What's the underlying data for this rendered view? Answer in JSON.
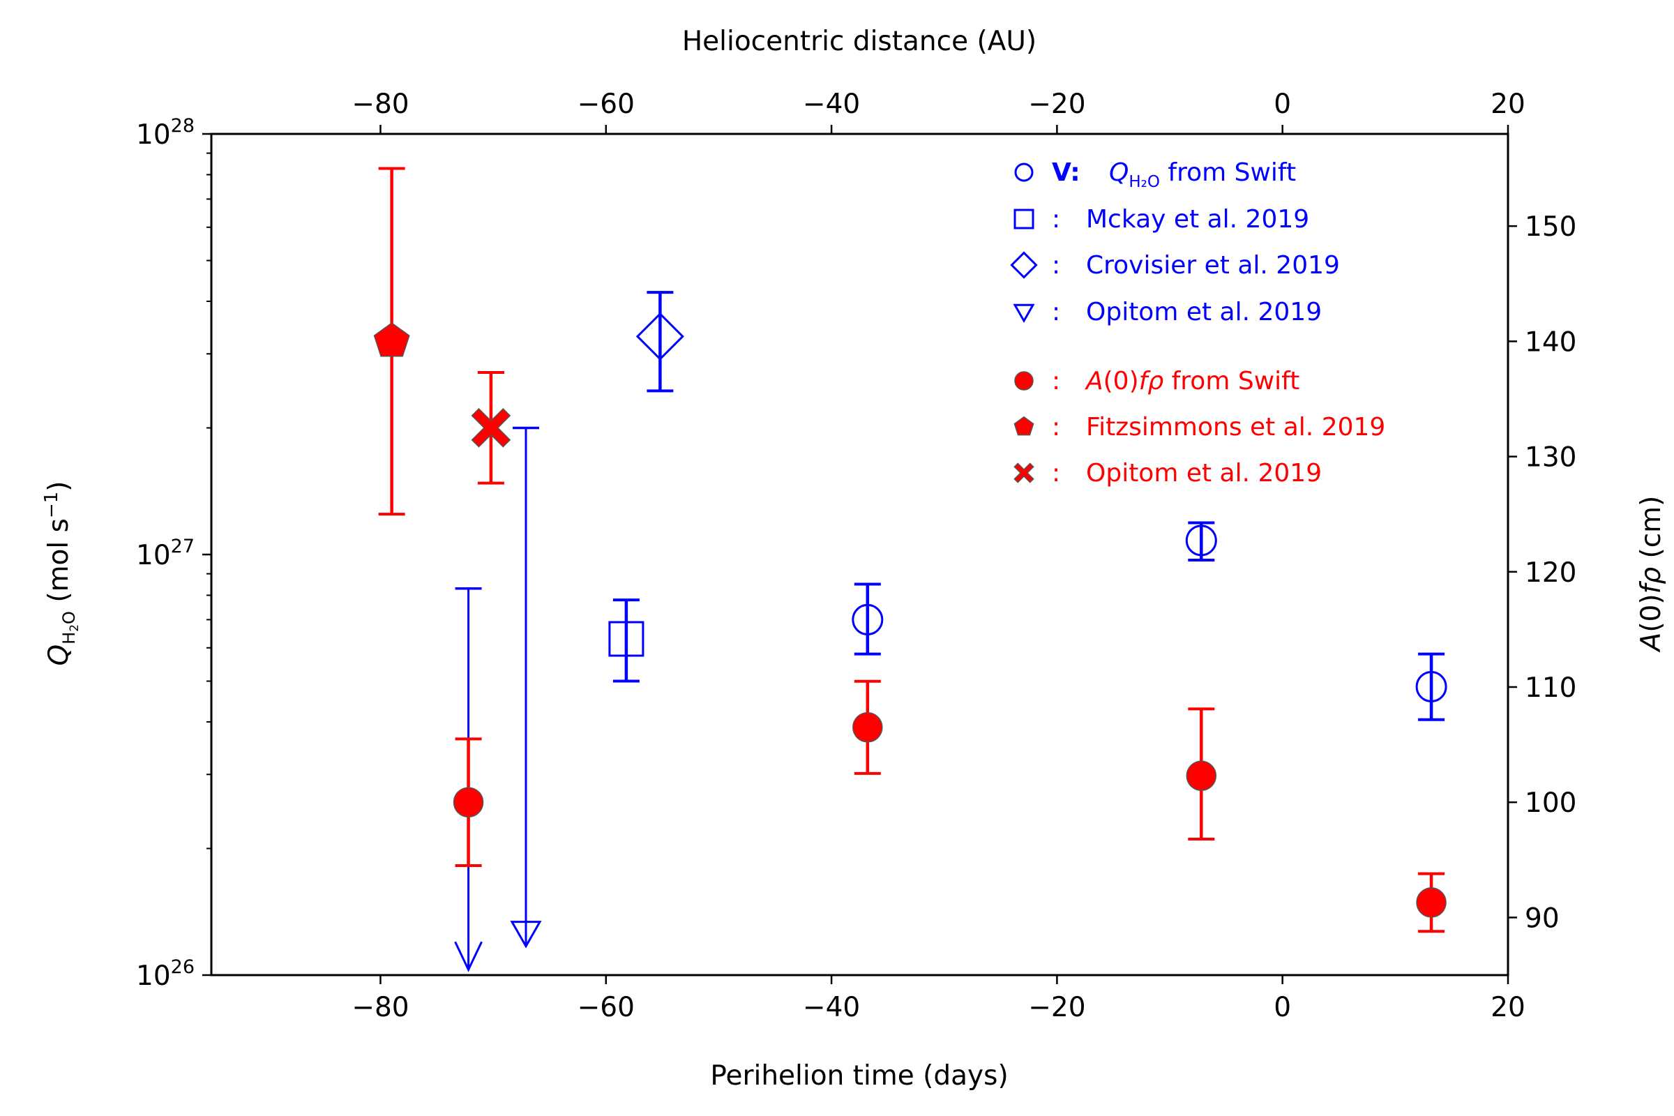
{
  "chart_data": {
    "type": "scatter",
    "title": "",
    "xlabel": "Perihelion time (days)",
    "x2label": "Heliocentric distance (AU)",
    "ylabel_main": "Q",
    "ylabel_sub": "H",
    "ylabel_sub2": "2",
    "ylabel_sub3": "O",
    "ylabel_units_pre": " (mol s",
    "ylabel_units_exp": "−1",
    "ylabel_units_post": ")",
    "y2label_pre": "A",
    "y2label_mid": "(0)",
    "y2label_italic": "fρ",
    "y2label_units": " (cm)",
    "xlim": [
      -95,
      20
    ],
    "ylim": [
      1e+26,
      1e+28
    ],
    "yscale": "log",
    "y2lim": [
      85,
      158
    ],
    "xticks": [
      -80,
      -60,
      -40,
      -20,
      0,
      20
    ],
    "xtick_labels": [
      "−80",
      "−60",
      "−40",
      "−20",
      "0",
      "20"
    ],
    "yticks_base": "10",
    "yticks_exp": [
      "26",
      "27",
      "28"
    ],
    "y2ticks": [
      90,
      100,
      110,
      120,
      130,
      140,
      150
    ],
    "colors": {
      "blue": "#0000ff",
      "red": "#ff0000",
      "axis": "#000000",
      "edge": "#555555"
    },
    "series": [
      {
        "name": "Q from Swift",
        "axis": "left",
        "marker": "circle",
        "filled": false,
        "color": "#0000ff",
        "points": [
          {
            "x": -7.2,
            "y": 1.08e+27,
            "lo": 9.7e+26,
            "hi": 1.19e+27
          },
          {
            "x": -36.8,
            "y": 7e+26,
            "lo": 5.8e+26,
            "hi": 8.5e+26
          },
          {
            "x": 13.2,
            "y": 4.85e+26,
            "lo": 4.05e+26,
            "hi": 5.8e+26
          }
        ],
        "upper_limits": [
          {
            "x": -72.2,
            "top": 8.3e+26,
            "bottom": 1.03e+26
          }
        ]
      },
      {
        "name": "Mckay et al. 2019",
        "axis": "left",
        "marker": "square",
        "filled": false,
        "color": "#0000ff",
        "points": [
          {
            "x": -58.2,
            "y": 6.3e+26,
            "lo": 5e+26,
            "hi": 7.8e+26
          }
        ]
      },
      {
        "name": "Crovisier et al. 2019",
        "axis": "left",
        "marker": "diamond",
        "filled": false,
        "color": "#0000ff",
        "points": [
          {
            "x": -55.2,
            "y": 3.3e+27,
            "lo": 2.45e+27,
            "hi": 4.2e+27
          }
        ]
      },
      {
        "name": "Opitom et al. 2019",
        "axis": "left",
        "marker": "triangle_down",
        "filled": false,
        "color": "#0000ff",
        "upper_limits": [
          {
            "x": -67.1,
            "top": 2e+27,
            "bottom": 1.18e+26
          }
        ]
      },
      {
        "name": "A(0)fρ from Swift",
        "axis": "right",
        "marker": "circle",
        "filled": true,
        "color": "#ff0000",
        "points": [
          {
            "x": -72.2,
            "y": 100,
            "lo": 94.5,
            "hi": 105.5
          },
          {
            "x": -36.8,
            "y": 106.5,
            "lo": 102.5,
            "hi": 110.5
          },
          {
            "x": -7.2,
            "y": 102.3,
            "lo": 96.8,
            "hi": 108.1
          },
          {
            "x": 13.2,
            "y": 91.3,
            "lo": 88.8,
            "hi": 93.8
          }
        ]
      },
      {
        "name": "Fitzsimmons et al. 2019",
        "axis": "right",
        "marker": "pentagon",
        "filled": true,
        "color": "#ff0000",
        "points": [
          {
            "x": -79.0,
            "y": 140,
            "lo": 125,
            "hi": 155
          }
        ]
      },
      {
        "name": "Opitom et al. 2019",
        "axis": "right",
        "marker": "x_filled",
        "filled": true,
        "color": "#ff0000",
        "points": [
          {
            "x": -70.2,
            "y": 132.5,
            "lo": 127.7,
            "hi": 137.3
          }
        ]
      }
    ],
    "legend": {
      "placement": "top-right",
      "entries": [
        {
          "marker": "circle",
          "filled": false,
          "color": "#0000ff",
          "prefix": "V:",
          "italic": "Q",
          "sub": "H₂O",
          "text": " from Swift"
        },
        {
          "marker": "square",
          "filled": false,
          "color": "#0000ff",
          "prefix": ":",
          "text": "Mckay et al. 2019"
        },
        {
          "marker": "diamond",
          "filled": false,
          "color": "#0000ff",
          "prefix": ":",
          "text": "Crovisier et al. 2019"
        },
        {
          "marker": "triangle_down",
          "filled": false,
          "color": "#0000ff",
          "prefix": ":",
          "text": "Opitom et al. 2019"
        },
        {
          "marker": "circle",
          "filled": true,
          "color": "#ff0000",
          "prefix": ":",
          "italic": "A",
          "text_a": "(0)",
          "italic2": "fρ",
          "text": " from Swift"
        },
        {
          "marker": "pentagon",
          "filled": true,
          "color": "#ff0000",
          "prefix": ":",
          "text": "Fitzsimmons et al. 2019"
        },
        {
          "marker": "x_filled",
          "filled": true,
          "color": "#ff0000",
          "prefix": ":",
          "text": "Opitom et al. 2019"
        }
      ]
    }
  }
}
